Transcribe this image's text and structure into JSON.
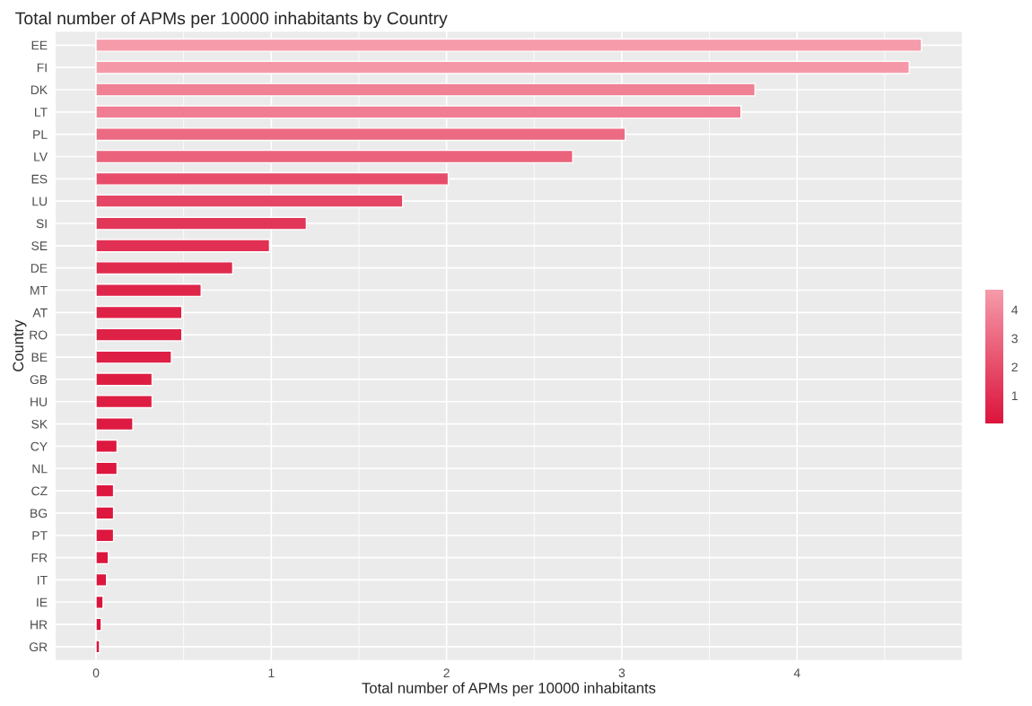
{
  "chart_data": {
    "type": "bar",
    "orientation": "horizontal",
    "title": "Total number of APMs per 10000 inhabitants by Country",
    "xlabel": "Total number of APMs per 10000 inhabitants",
    "ylabel": "Country",
    "categories": [
      "EE",
      "FI",
      "DK",
      "LT",
      "PL",
      "LV",
      "ES",
      "LU",
      "SI",
      "SE",
      "DE",
      "MT",
      "AT",
      "RO",
      "BE",
      "GB",
      "HU",
      "SK",
      "CY",
      "NL",
      "CZ",
      "BG",
      "PT",
      "FR",
      "IT",
      "IE",
      "HR",
      "GR"
    ],
    "values": [
      4.71,
      4.64,
      3.76,
      3.68,
      3.02,
      2.72,
      2.01,
      1.75,
      1.2,
      0.99,
      0.78,
      0.6,
      0.49,
      0.49,
      0.43,
      0.32,
      0.32,
      0.21,
      0.12,
      0.12,
      0.1,
      0.1,
      0.1,
      0.07,
      0.06,
      0.04,
      0.03,
      0.02
    ],
    "colors": [
      "#f59baa",
      "#f599a8",
      "#f08094",
      "#f07d92",
      "#ec6a82",
      "#ea627b",
      "#e74d6b",
      "#e54665",
      "#e23658",
      "#e13053",
      "#e02a4e",
      "#df254a",
      "#de2247",
      "#de2247",
      "#de2046",
      "#de1d43",
      "#de1d43",
      "#dd1a41",
      "#dd173e",
      "#dd173e",
      "#dd173e",
      "#dd173e",
      "#dd173e",
      "#dc163d",
      "#dc163d",
      "#dc143c",
      "#dc143c",
      "#dc143c"
    ],
    "xlim": [
      -0.23,
      4.94
    ],
    "xticks": [
      0,
      1,
      2,
      3,
      4
    ],
    "clim": [
      0.02,
      4.71
    ],
    "cticks": [
      1,
      2,
      3,
      4
    ],
    "grid": true
  }
}
